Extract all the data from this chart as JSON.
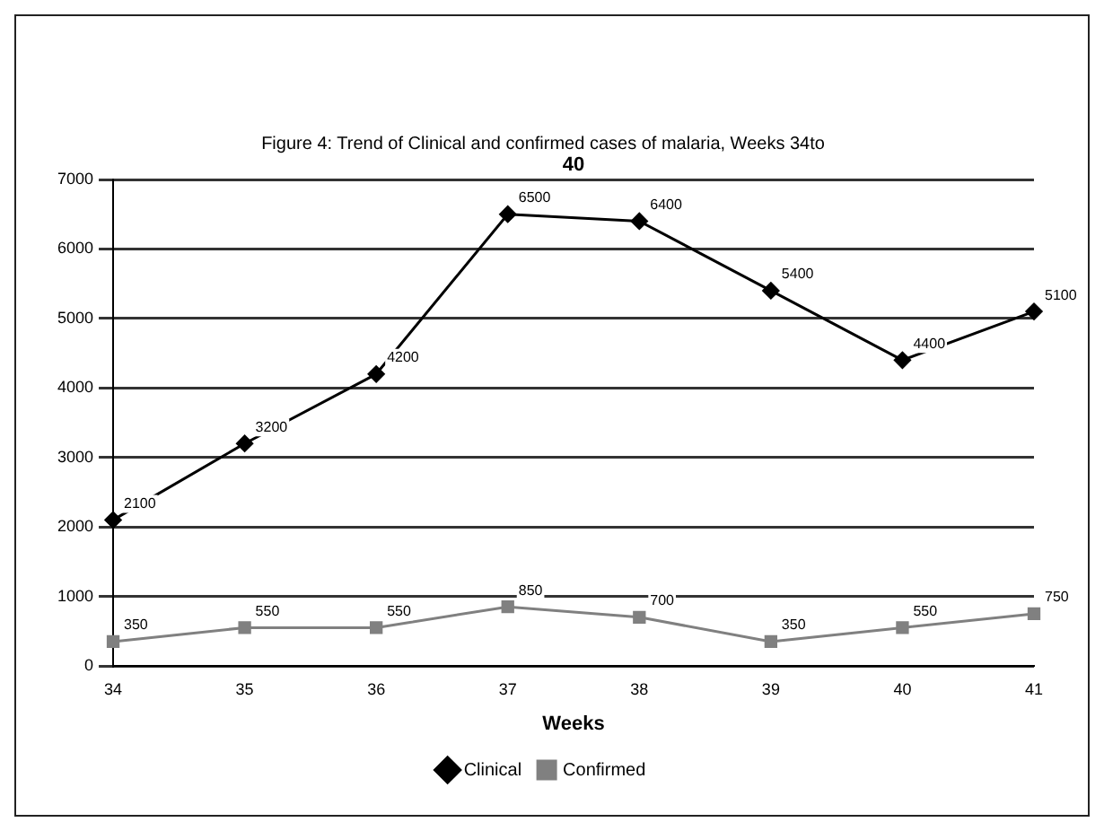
{
  "chart_data": {
    "type": "line",
    "title": "Figure 4: Trend of Clinical and confirmed cases of malaria, Weeks 34to",
    "xlabel": "Weeks",
    "annotations": [
      "40"
    ],
    "categories": [
      "34",
      "35",
      "36",
      "37",
      "38",
      "39",
      "40",
      "41"
    ],
    "series": [
      {
        "name": "Clinical",
        "color": "#000000",
        "marker": "diamond",
        "values": [
          2100,
          3200,
          4200,
          6500,
          6400,
          5400,
          4400,
          5100
        ]
      },
      {
        "name": "Confirmed",
        "color": "#808080",
        "marker": "square",
        "values": [
          350,
          550,
          550,
          850,
          700,
          350,
          550,
          750
        ]
      }
    ],
    "ylim": [
      0,
      7000
    ],
    "yticks": [
      0,
      1000,
      2000,
      3000,
      4000,
      5000,
      6000,
      7000
    ],
    "grid": "y",
    "legend": "bottom",
    "data_labels": true
  }
}
